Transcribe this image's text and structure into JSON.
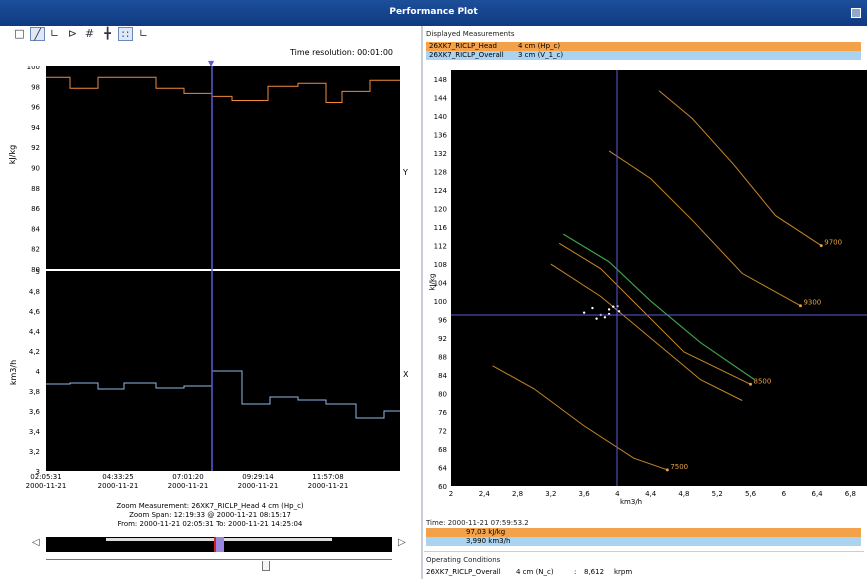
{
  "window": {
    "title": "Performance Plot"
  },
  "toolbar": {
    "time_resolution": "Time resolution: 00:01:00"
  },
  "top_chart": {
    "ylabel": "kJ/kg",
    "side_label": "Y",
    "y_ticks": [
      "100",
      "98",
      "96",
      "94",
      "92",
      "90",
      "88",
      "86",
      "84",
      "82",
      "80"
    ]
  },
  "bottom_chart": {
    "ylabel": "km3/h",
    "side_label": "X",
    "y_ticks": [
      "5",
      "4,8",
      "4,6",
      "4,4",
      "4,2",
      "4",
      "3,8",
      "3,6",
      "3,4",
      "3,2",
      "3"
    ]
  },
  "time_axis": [
    {
      "time": "02:05:31",
      "date": "2000-11-21"
    },
    {
      "time": "04:33:25",
      "date": "2000-11-21"
    },
    {
      "time": "07:01:20",
      "date": "2000-11-21"
    },
    {
      "time": "09:29:14",
      "date": "2000-11-21"
    },
    {
      "time": "11:57:08",
      "date": "2000-11-21"
    }
  ],
  "zoom": {
    "measurement": "Zoom Measurement: 26XK7_RICLP_Head   4 cm (Hp_c)",
    "span": "Zoom Span: 12:19:33 @ 2000-11-21 08:15:17",
    "range": "From: 2000-11-21 02:05:31   To: 2000-11-21 14:25:04"
  },
  "displayed_measurements": {
    "header": "Displayed Measurements",
    "rows": [
      {
        "name": "26XK7_RICLP_Head",
        "value": "4 cm (Hp_c)",
        "color": "#f4a24a"
      },
      {
        "name": "26XK7_RICLP_Overall",
        "value": "3 cm (V_1_c)",
        "color": "#a9d3f0"
      }
    ]
  },
  "perf_chart": {
    "ylabel": "kJ/kg",
    "xlabel": "km3/h",
    "y_ticks": [
      "148",
      "144",
      "140",
      "136",
      "132",
      "128",
      "124",
      "120",
      "116",
      "112",
      "108",
      "104",
      "100",
      "96",
      "92",
      "88",
      "84",
      "80",
      "76",
      "72",
      "68",
      "64",
      "60"
    ],
    "x_ticks": [
      "2",
      "2,4",
      "2,8",
      "3,2",
      "3,6",
      "4",
      "4,4",
      "4,8",
      "5,2",
      "5,6",
      "6",
      "6,4",
      "6,8"
    ],
    "curve_labels": [
      "9700",
      "9300",
      "8500",
      "7500"
    ]
  },
  "cursor": {
    "time": "Time: 2000-11-21 07:59:53.2",
    "values": [
      {
        "text": "97,03  kJ/kg",
        "color": "#f4a24a"
      },
      {
        "text": "3,990  km3/h",
        "color": "#a9d3f0"
      }
    ]
  },
  "operating": {
    "header": "Operating Conditions",
    "row": {
      "name": "26XK7_RICLP_Overall",
      "unit": "4 cm (N_c)",
      "sep": ":",
      "value": "8,612",
      "eng": "krpm"
    }
  },
  "colors": {
    "head_line": "#f28a3c",
    "overall_line": "#8fb8e6",
    "cursor": "#5a5ad8",
    "curve": "#c8862a",
    "surge": "#3fa34a"
  }
}
